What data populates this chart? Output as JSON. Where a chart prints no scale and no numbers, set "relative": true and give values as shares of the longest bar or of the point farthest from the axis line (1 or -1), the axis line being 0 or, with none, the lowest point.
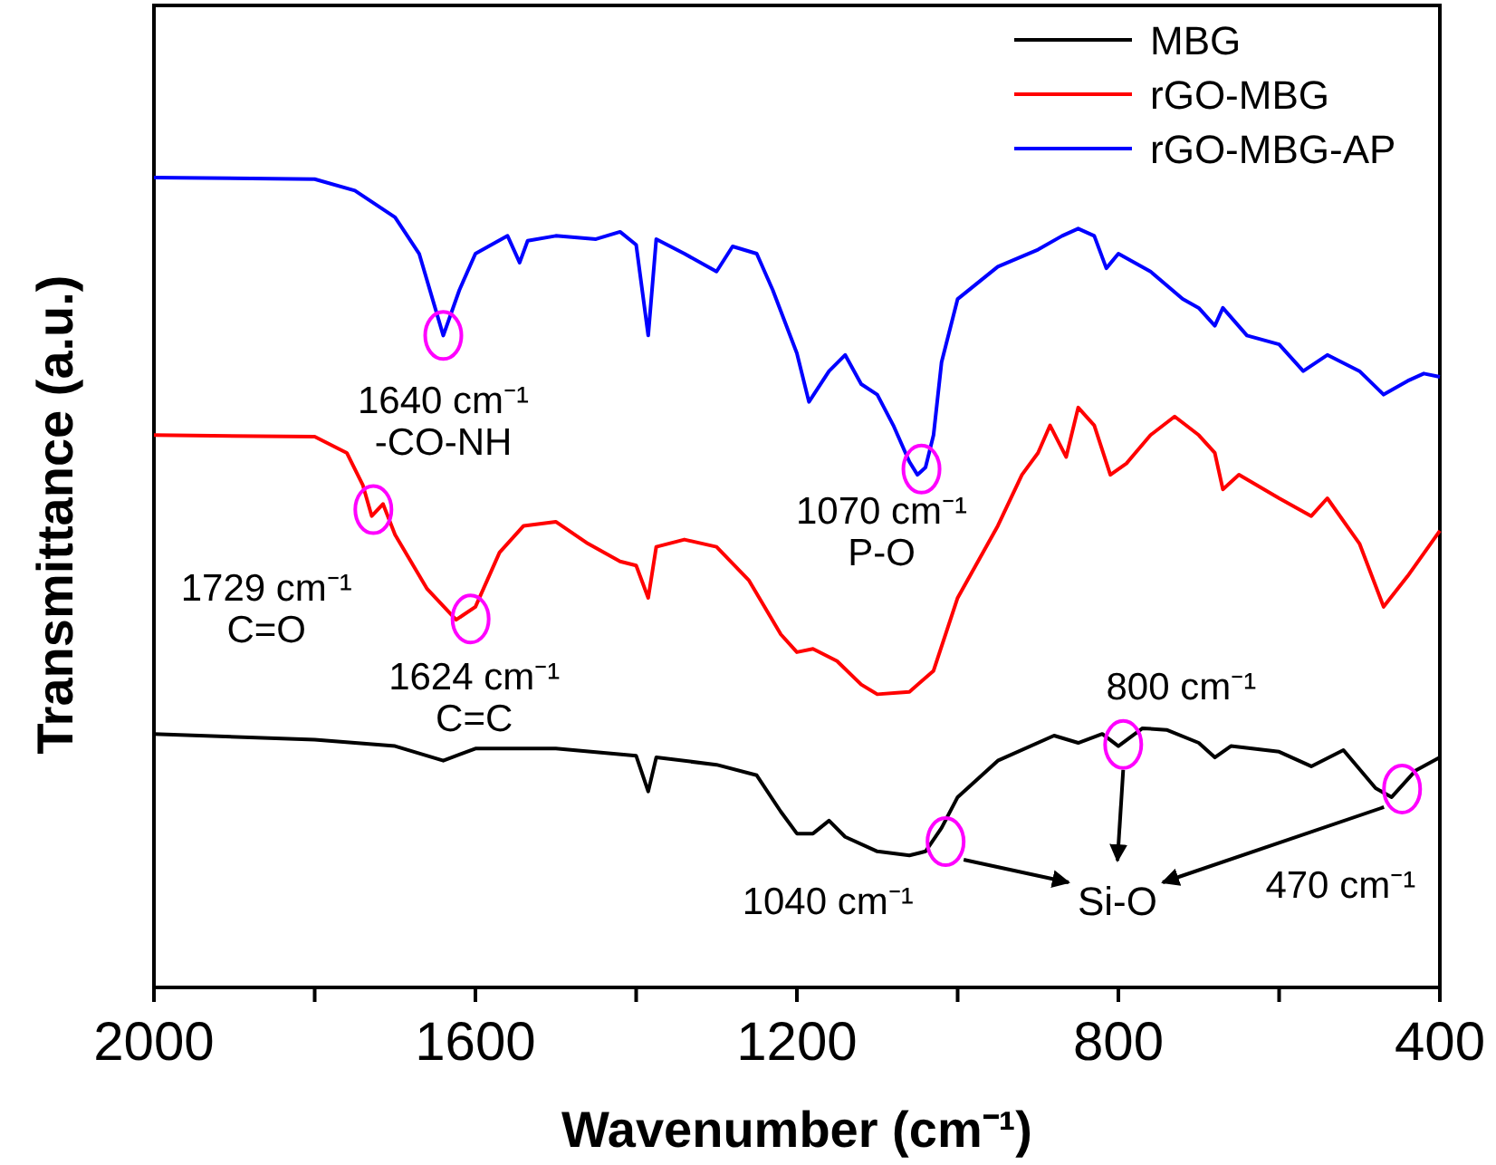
{
  "chart_data": {
    "type": "line",
    "relative": true,
    "xlabel": "Wavenumber (cm⁻¹)",
    "ylabel": "Transmittance (a.u.)",
    "xlim": [
      2000,
      400
    ],
    "xticks": [
      2000,
      {
        "value": 1800,
        "label": null
      },
      1600,
      {
        "value": 1400,
        "label": null
      },
      1200,
      {
        "value": 1000,
        "label": null
      },
      800,
      {
        "value": 600,
        "label": null
      },
      400
    ],
    "legend": "top right",
    "grid": false,
    "tick_labels": "x",
    "series": [
      {
        "name": "MBG",
        "color": "#000000",
        "x": [
          2000,
          1800,
          1700,
          1640,
          1600,
          1500,
          1400,
          1385,
          1375,
          1300,
          1250,
          1220,
          1200,
          1180,
          1160,
          1140,
          1100,
          1060,
          1040,
          1020,
          1000,
          950,
          880,
          850,
          820,
          800,
          770,
          740,
          700,
          680,
          660,
          600,
          560,
          520,
          480,
          460,
          430,
          400
        ],
        "values": [
          0.313,
          0.306,
          0.298,
          0.28,
          0.295,
          0.295,
          0.286,
          0.242,
          0.284,
          0.275,
          0.262,
          0.217,
          0.19,
          0.19,
          0.206,
          0.186,
          0.168,
          0.163,
          0.168,
          0.197,
          0.235,
          0.28,
          0.311,
          0.302,
          0.313,
          0.298,
          0.32,
          0.318,
          0.302,
          0.284,
          0.298,
          0.291,
          0.273,
          0.293,
          0.246,
          0.235,
          0.268,
          0.284
        ]
      },
      {
        "name": "rGO-MBG",
        "color": "#ff0000",
        "x": [
          2000,
          1800,
          1760,
          1740,
          1729,
          1715,
          1700,
          1660,
          1624,
          1600,
          1570,
          1540,
          1500,
          1460,
          1420,
          1400,
          1385,
          1375,
          1340,
          1300,
          1260,
          1220,
          1200,
          1180,
          1150,
          1120,
          1100,
          1060,
          1030,
          1000,
          950,
          920,
          900,
          885,
          865,
          850,
          830,
          810,
          790,
          760,
          730,
          700,
          680,
          670,
          650,
          600,
          560,
          540,
          500,
          470,
          440,
          400
        ],
        "values": [
          0.682,
          0.68,
          0.66,
          0.62,
          0.582,
          0.597,
          0.559,
          0.492,
          0.454,
          0.47,
          0.537,
          0.57,
          0.575,
          0.548,
          0.526,
          0.521,
          0.481,
          0.544,
          0.553,
          0.544,
          0.503,
          0.436,
          0.414,
          0.418,
          0.403,
          0.374,
          0.362,
          0.365,
          0.391,
          0.481,
          0.57,
          0.633,
          0.66,
          0.694,
          0.655,
          0.716,
          0.694,
          0.633,
          0.647,
          0.682,
          0.705,
          0.682,
          0.66,
          0.615,
          0.633,
          0.604,
          0.582,
          0.604,
          0.548,
          0.47,
          0.508,
          0.564
        ]
      },
      {
        "name": "rGO-MBG-AP",
        "color": "#0000ff",
        "x": [
          2000,
          1800,
          1750,
          1700,
          1670,
          1640,
          1620,
          1600,
          1560,
          1545,
          1535,
          1500,
          1450,
          1420,
          1400,
          1385,
          1375,
          1340,
          1300,
          1280,
          1250,
          1230,
          1200,
          1185,
          1160,
          1140,
          1120,
          1100,
          1080,
          1060,
          1050,
          1040,
          1030,
          1020,
          1000,
          950,
          900,
          870,
          850,
          830,
          815,
          800,
          760,
          720,
          700,
          680,
          670,
          640,
          600,
          570,
          540,
          500,
          470,
          440,
          420,
          400
        ],
        "values": [
          1.0,
          0.998,
          0.984,
          0.951,
          0.906,
          0.805,
          0.861,
          0.906,
          0.928,
          0.895,
          0.922,
          0.928,
          0.924,
          0.933,
          0.917,
          0.805,
          0.924,
          0.906,
          0.884,
          0.915,
          0.906,
          0.861,
          0.783,
          0.723,
          0.761,
          0.781,
          0.745,
          0.732,
          0.694,
          0.649,
          0.633,
          0.642,
          0.682,
          0.772,
          0.85,
          0.89,
          0.911,
          0.928,
          0.937,
          0.928,
          0.888,
          0.906,
          0.884,
          0.85,
          0.839,
          0.817,
          0.839,
          0.805,
          0.794,
          0.761,
          0.781,
          0.761,
          0.732,
          0.749,
          0.758,
          0.754
        ]
      }
    ],
    "annotations": [
      {
        "text": "1640 cm⁻¹\n-CO-NH",
        "x": 1640,
        "y": 0.805
      },
      {
        "text": "1070 cm⁻¹\nP-O",
        "x": 1045,
        "y": 0.64
      },
      {
        "text": "1729 cm⁻¹\nC=O",
        "x": 1727,
        "y": 0.59
      },
      {
        "text": "1624 cm⁻¹\nC=C",
        "x": 1606,
        "y": 0.455
      },
      {
        "text": "1040 cm⁻¹",
        "x": 1015,
        "y": 0.18
      },
      {
        "text": "800 cm⁻¹",
        "x": 794,
        "y": 0.3
      },
      {
        "text": "470 cm⁻¹",
        "x": 447,
        "y": 0.245
      },
      "Si-O"
    ]
  }
}
